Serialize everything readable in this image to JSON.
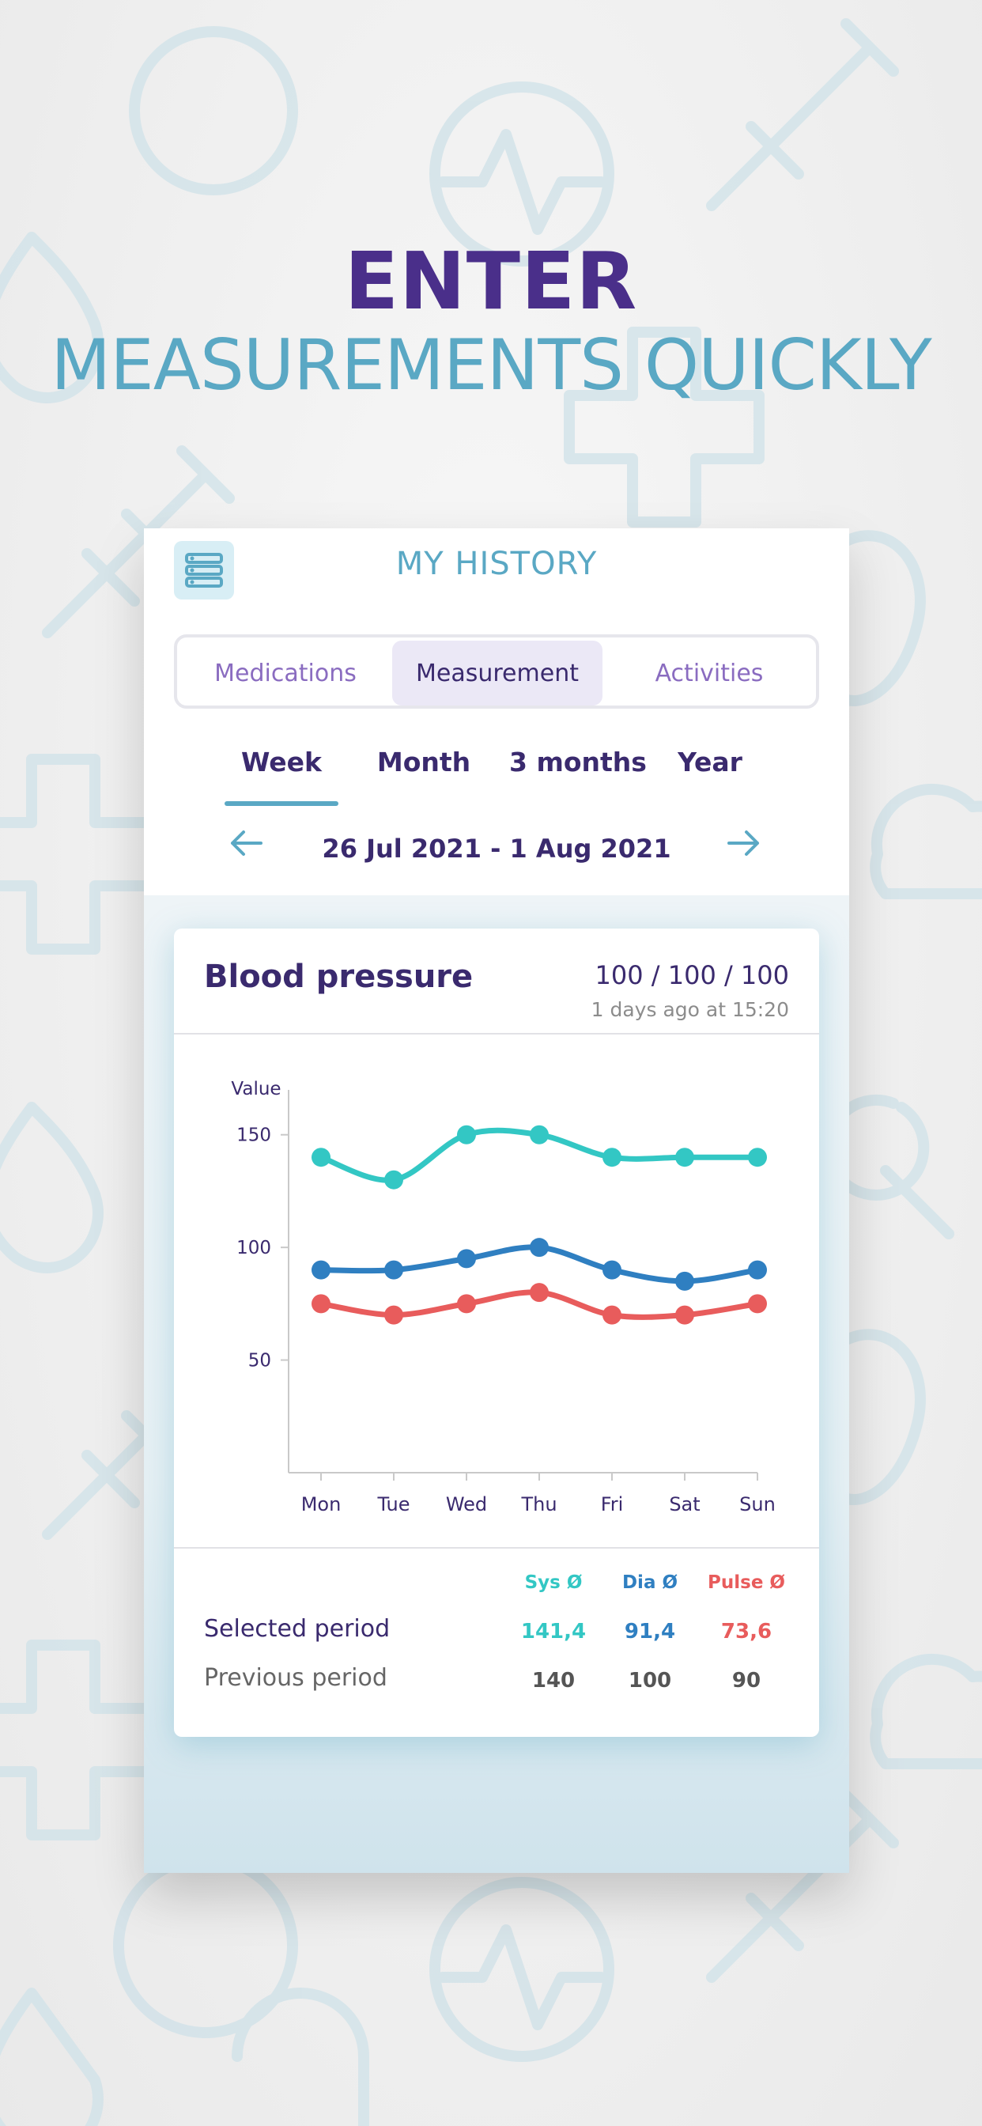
{
  "headline": {
    "line1": "ENTER",
    "line2": "MEASUREMENTS QUICKLY"
  },
  "app": {
    "title": "MY HISTORY",
    "menu_icon": "list-icon",
    "tabs": [
      {
        "label": "Medications",
        "active": false
      },
      {
        "label": "Measurement",
        "active": true
      },
      {
        "label": "Activities",
        "active": false
      }
    ],
    "periods": [
      {
        "label": "Week",
        "active": true
      },
      {
        "label": "Month",
        "active": false
      },
      {
        "label": "3 months",
        "active": false
      },
      {
        "label": "Year",
        "active": false
      }
    ],
    "date_range": "26 Jul 2021 - 1 Aug 2021",
    "prev_icon": "arrow-left-icon",
    "next_icon": "arrow-right-icon"
  },
  "card": {
    "title": "Blood pressure",
    "latest_value": "100 / 100 / 100",
    "latest_time": "1 days ago at 15:20"
  },
  "chart_data": {
    "type": "line",
    "ylabel": "Value",
    "yticks": [
      150,
      100,
      50
    ],
    "ylim": [
      0,
      165
    ],
    "grid": false,
    "categories": [
      "Mon",
      "Tue",
      "Wed",
      "Thu",
      "Fri",
      "Sat",
      "Sun"
    ],
    "series": [
      {
        "color": "#33c7c4",
        "values": [
          140,
          130,
          150,
          150,
          140,
          140,
          140
        ]
      },
      {
        "color": "#2f7fc1",
        "values": [
          90,
          90,
          95,
          100,
          90,
          85,
          90
        ]
      },
      {
        "color": "#e85c5c",
        "values": [
          75,
          70,
          75,
          80,
          70,
          70,
          75
        ]
      }
    ]
  },
  "stats": {
    "headers": [
      {
        "label": "Sys Ø",
        "color": "#33c7c4"
      },
      {
        "label": "Dia Ø",
        "color": "#2f7fc1"
      },
      {
        "label": "Pulse Ø",
        "color": "#e85c5c"
      }
    ],
    "rows": [
      {
        "label": "Selected period",
        "values": [
          "141,4",
          "91,4",
          "73,6"
        ]
      },
      {
        "label": "Previous period",
        "values": [
          "140",
          "100",
          "90"
        ]
      }
    ]
  }
}
